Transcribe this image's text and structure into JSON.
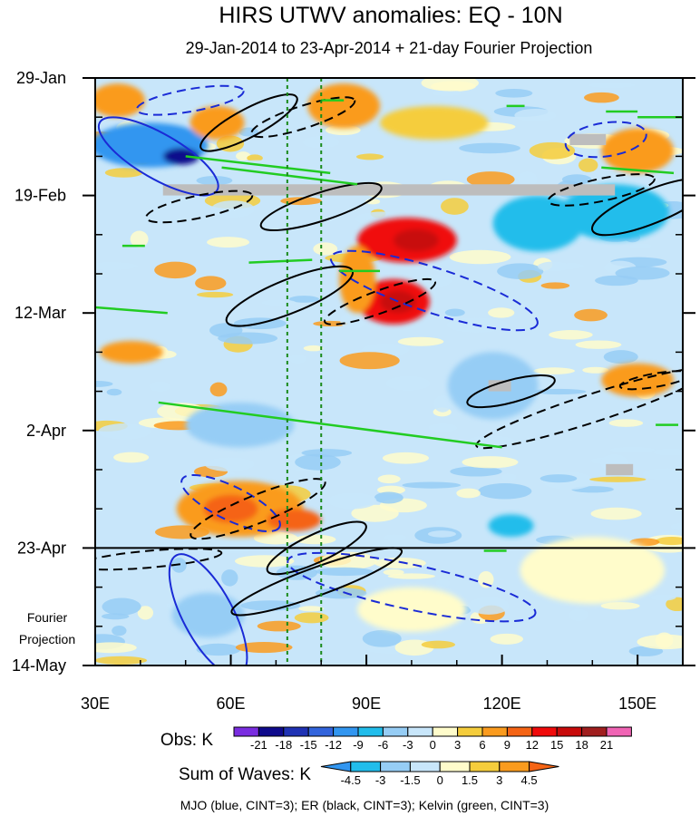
{
  "chart_data": {
    "type": "heatmap",
    "title": "HIRS UTWV anomalies: EQ - 10N",
    "subtitle": "29-Jan-2014 to 23-Apr-2014 + 21-day Fourier Projection",
    "xlabel": "",
    "ylabel": "",
    "x_range": [
      30,
      160
    ],
    "x_ticks": [
      30,
      60,
      90,
      120,
      150
    ],
    "x_tick_labels": [
      "30E",
      "60E",
      "90E",
      "120E",
      "150E"
    ],
    "y_range_days": [
      0,
      105
    ],
    "y_ticks_days": [
      0,
      21,
      42,
      63,
      84,
      105
    ],
    "y_tick_labels": [
      "29-Jan",
      "19-Feb",
      "12-Mar",
      "2-Apr",
      "23-Apr",
      "14-May"
    ],
    "projection_start_day": 84,
    "projection_label": [
      "Fourier",
      "Projection"
    ],
    "reference_longitudes": [
      72.5,
      80
    ],
    "obs_colorbar": {
      "label": "Obs: K",
      "levels": [
        -21,
        -18,
        -15,
        -12,
        -9,
        -6,
        -3,
        0,
        3,
        6,
        9,
        12,
        15,
        18,
        21
      ],
      "colors": [
        "#7a2de0",
        "#0f0a8c",
        "#1f32b4",
        "#3264dc",
        "#3296f0",
        "#21bdeb",
        "#96cdf5",
        "#c8e6fa",
        "#fffccb",
        "#f5cd3c",
        "#fa9b1e",
        "#f56414",
        "#f00a0a",
        "#c80a0a",
        "#a01e1e",
        "#f064b4"
      ]
    },
    "waves_colorbar": {
      "label": "Sum of Waves: K",
      "levels": [
        -4.5,
        -3,
        -1.5,
        0,
        1.5,
        3,
        4.5
      ],
      "colors": [
        "#3296f0",
        "#21bdeb",
        "#96cdf5",
        "#c8e6fa",
        "#fffccb",
        "#f5cd3c",
        "#fa9b1e",
        "#f56414"
      ]
    },
    "contour_legend": "MJO (blue, CINT=3); ER (black, CINT=3); Kelvin (green, CINT=3)",
    "anomaly_blobs": [
      {
        "lon": 42,
        "day": 12,
        "lon_r": 13,
        "day_r": 4,
        "value": -10
      },
      {
        "lon": 49,
        "day": 14,
        "lon_r": 4,
        "day_r": 1.5,
        "value": -19
      },
      {
        "lon": 57,
        "day": 8,
        "lon_r": 6,
        "day_r": 3,
        "value": 7
      },
      {
        "lon": 35,
        "day": 4,
        "lon_r": 6,
        "day_r": 3,
        "value": 6
      },
      {
        "lon": 99,
        "day": 29,
        "lon_r": 11,
        "day_r": 4,
        "value": 12
      },
      {
        "lon": 101,
        "day": 29,
        "lon_r": 5,
        "day_r": 2,
        "value": 16
      },
      {
        "lon": 96,
        "day": 40,
        "lon_r": 8,
        "day_r": 4,
        "value": 13
      },
      {
        "lon": 97,
        "day": 40,
        "lon_r": 4,
        "day_r": 2,
        "value": 17
      },
      {
        "lon": 88,
        "day": 36,
        "lon_r": 4,
        "day_r": 6,
        "value": 6
      },
      {
        "lon": 85,
        "day": 5,
        "lon_r": 8,
        "day_r": 4,
        "value": 7
      },
      {
        "lon": 105,
        "day": 8,
        "lon_r": 12,
        "day_r": 3,
        "value": 5
      },
      {
        "lon": 150,
        "day": 13,
        "lon_r": 8,
        "day_r": 4,
        "value": 8
      },
      {
        "lon": 145,
        "day": 24,
        "lon_r": 12,
        "day_r": 5,
        "value": -8
      },
      {
        "lon": 128,
        "day": 26,
        "lon_r": 10,
        "day_r": 5,
        "value": -7
      },
      {
        "lon": 62,
        "day": 77,
        "lon_r": 14,
        "day_r": 5,
        "value": 8
      },
      {
        "lon": 60,
        "day": 77,
        "lon_r": 6,
        "day_r": 2.5,
        "value": 11
      },
      {
        "lon": 74,
        "day": 79,
        "lon_r": 6,
        "day_r": 2,
        "value": 9
      },
      {
        "lon": 55,
        "day": 96,
        "lon_r": 8,
        "day_r": 4,
        "value": -5
      },
      {
        "lon": 62,
        "day": 62,
        "lon_r": 12,
        "day_r": 4,
        "value": -5
      },
      {
        "lon": 118,
        "day": 55,
        "lon_r": 10,
        "day_r": 6,
        "value": -6
      },
      {
        "lon": 122,
        "day": 80,
        "lon_r": 5,
        "day_r": 2,
        "value": -7
      },
      {
        "lon": 150,
        "day": 54,
        "lon_r": 8,
        "day_r": 3,
        "value": 6
      },
      {
        "lon": 38,
        "day": 49,
        "lon_r": 7,
        "day_r": 2,
        "value": 6
      },
      {
        "lon": 140,
        "day": 88,
        "lon_r": 16,
        "day_r": 6,
        "value": 2
      },
      {
        "lon": 100,
        "day": 95,
        "lon_r": 12,
        "day_r": 4,
        "value": 1.5
      }
    ],
    "missing_data": [
      {
        "lon0": 45,
        "lon1": 145,
        "day0": 19,
        "day1": 21
      },
      {
        "lon0": 135,
        "lon1": 143,
        "day0": 10,
        "day1": 12
      },
      {
        "lon0": 117,
        "lon1": 122,
        "day0": 54,
        "day1": 56
      },
      {
        "lon0": 143,
        "lon1": 149,
        "day0": 69,
        "day1": 71
      }
    ],
    "mjo_contours": [
      {
        "lon": 44,
        "day": 14,
        "lon_r": 15,
        "day_r": 4,
        "angle": 30,
        "dashed": false
      },
      {
        "lon": 55,
        "day": 96,
        "lon_r": 15,
        "day_r": 4.5,
        "angle": 62,
        "dashed": false
      },
      {
        "lon": 51,
        "day": 4,
        "lon_r": 12,
        "day_r": 2,
        "angle": -10,
        "dashed": true
      },
      {
        "lon": 105,
        "day": 38,
        "lon_r": 24,
        "day_r": 4,
        "angle": 18,
        "dashed": true
      },
      {
        "lon": 143,
        "day": 11,
        "lon_r": 9,
        "day_r": 3,
        "angle": -8,
        "dashed": true
      },
      {
        "lon": 60,
        "day": 76,
        "lon_r": 12,
        "day_r": 3,
        "angle": 26,
        "dashed": true
      },
      {
        "lon": 100,
        "day": 91,
        "lon_r": 28,
        "day_r": 4,
        "angle": 12,
        "dashed": true
      }
    ],
    "er_contours": [
      {
        "lon": 64,
        "day": 8,
        "lon_r": 12,
        "day_r": 2.5,
        "angle": -28,
        "dashed": false
      },
      {
        "lon": 80,
        "day": 23,
        "lon_r": 14,
        "day_r": 2.5,
        "angle": -18,
        "dashed": false
      },
      {
        "lon": 73,
        "day": 39,
        "lon_r": 15,
        "day_r": 3,
        "angle": -22,
        "dashed": false
      },
      {
        "lon": 153,
        "day": 23,
        "lon_r": 14,
        "day_r": 3,
        "angle": -22,
        "dashed": false
      },
      {
        "lon": 122,
        "day": 56,
        "lon_r": 10,
        "day_r": 2,
        "angle": -15,
        "dashed": false
      },
      {
        "lon": 79,
        "day": 84,
        "lon_r": 12,
        "day_r": 2.5,
        "angle": -25,
        "dashed": false
      },
      {
        "lon": 79,
        "day": 90,
        "lon_r": 20,
        "day_r": 2.5,
        "angle": -20,
        "dashed": false
      },
      {
        "lon": 76,
        "day": 7,
        "lon_r": 12,
        "day_r": 2,
        "angle": -18,
        "dashed": true
      },
      {
        "lon": 53,
        "day": 23,
        "lon_r": 12,
        "day_r": 2,
        "angle": -12,
        "dashed": true
      },
      {
        "lon": 93,
        "day": 40,
        "lon_r": 13,
        "day_r": 2,
        "angle": -20,
        "dashed": true
      },
      {
        "lon": 66,
        "day": 77,
        "lon_r": 16,
        "day_r": 2.5,
        "angle": -22,
        "dashed": true
      },
      {
        "lon": 142,
        "day": 20,
        "lon_r": 12,
        "day_r": 2,
        "angle": -12,
        "dashed": true
      },
      {
        "lon": 140,
        "day": 59,
        "lon_r": 27,
        "day_r": 2.5,
        "angle": -18,
        "dashed": true
      },
      {
        "lon": 42,
        "day": 86,
        "lon_r": 16,
        "day_r": 1.5,
        "angle": -5,
        "dashed": true
      },
      {
        "lon": 154,
        "day": 54,
        "lon_r": 8,
        "day_r": 1.2,
        "angle": -10,
        "dashed": true
      }
    ],
    "kelvin_contours": [
      {
        "lon0": 50,
        "day0": 14,
        "lon1": 82,
        "day1": 17,
        "dashed": false
      },
      {
        "lon0": 58,
        "day0": 16,
        "lon1": 88,
        "day1": 19,
        "dashed": false
      },
      {
        "lon0": 44,
        "day0": 58,
        "lon1": 120,
        "day1": 66,
        "dashed": false
      },
      {
        "lon0": 30,
        "day0": 41,
        "lon1": 46,
        "day1": 42,
        "dashed": false
      },
      {
        "lon0": 142,
        "day0": 16,
        "lon1": 158,
        "day1": 17,
        "dashed": false
      },
      {
        "lon0": 143,
        "day0": 6,
        "lon1": 150,
        "day1": 6,
        "dashed": false
      },
      {
        "lon0": 150,
        "day0": 7,
        "lon1": 160,
        "day1": 7,
        "dashed": false
      },
      {
        "lon0": 64,
        "day0": 33,
        "lon1": 78,
        "day1": 32.5,
        "dashed": false
      },
      {
        "lon0": 84,
        "day0": 34.5,
        "lon1": 93,
        "day1": 34.5,
        "dashed": false
      },
      {
        "lon0": 36,
        "day0": 30,
        "lon1": 41,
        "day1": 30,
        "dashed": false
      },
      {
        "lon0": 80,
        "day0": 4,
        "lon1": 85,
        "day1": 4,
        "dashed": false
      },
      {
        "lon0": 121,
        "day0": 5,
        "lon1": 125,
        "day1": 5,
        "dashed": false
      },
      {
        "lon0": 154,
        "day0": 62,
        "lon1": 159,
        "day1": 62,
        "dashed": false
      },
      {
        "lon0": 116,
        "day0": 84.5,
        "lon1": 121,
        "day1": 84.5,
        "dashed": false
      }
    ]
  }
}
